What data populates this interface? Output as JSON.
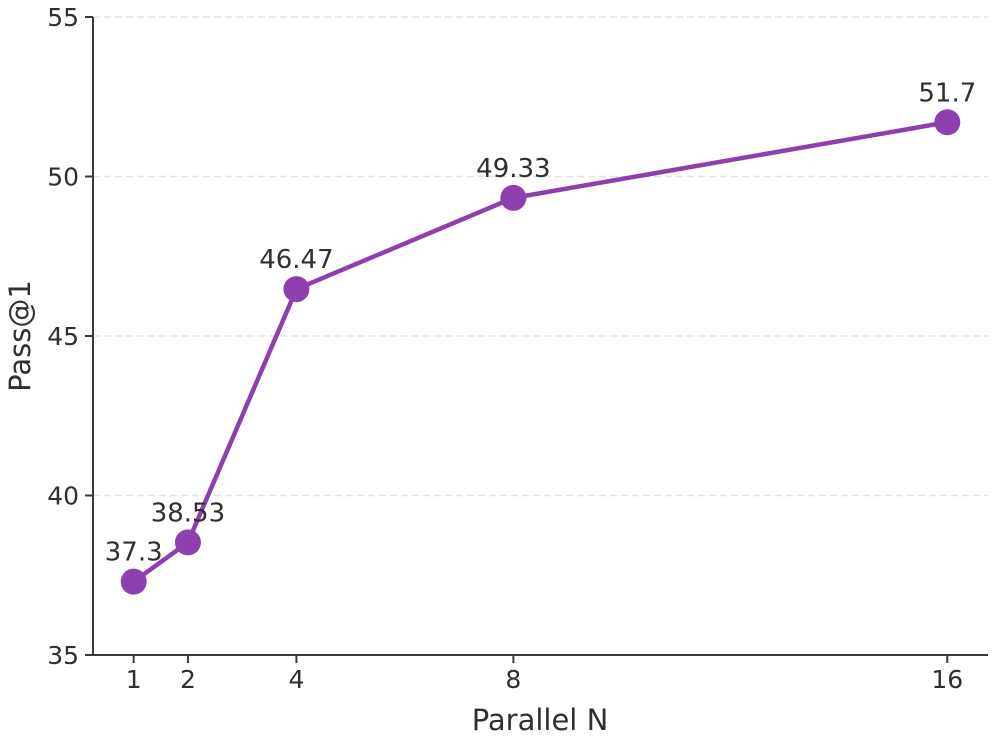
{
  "chart_data": {
    "type": "line",
    "title": "",
    "xlabel": "Parallel N",
    "ylabel": "Pass@1",
    "x": [
      1,
      2,
      4,
      8,
      16
    ],
    "series": [
      {
        "name": "Pass@1",
        "values": [
          37.3,
          38.53,
          46.47,
          49.33,
          51.7
        ],
        "point_labels": [
          "37.3",
          "38.53",
          "46.47",
          "49.33",
          "51.7"
        ]
      }
    ],
    "xticks": [
      1,
      2,
      4,
      8,
      16
    ],
    "xtick_labels": [
      "1",
      "2",
      "4",
      "8",
      "16"
    ],
    "yticks": [
      35,
      40,
      45,
      50,
      55
    ],
    "ytick_labels": [
      "35",
      "40",
      "45",
      "50",
      "55"
    ],
    "xlim": [
      0.25,
      16.75
    ],
    "ylim": [
      35,
      55
    ],
    "x_scale": "linear",
    "grid": "horizontal-dashed",
    "legend": "none",
    "colors": {
      "line": "#8e3fae",
      "marker": "#8e3fae",
      "text": "#2f2f2f",
      "grid": "#e3e3e3",
      "spine": "#3a3a3a",
      "background": "#ffffff"
    }
  }
}
